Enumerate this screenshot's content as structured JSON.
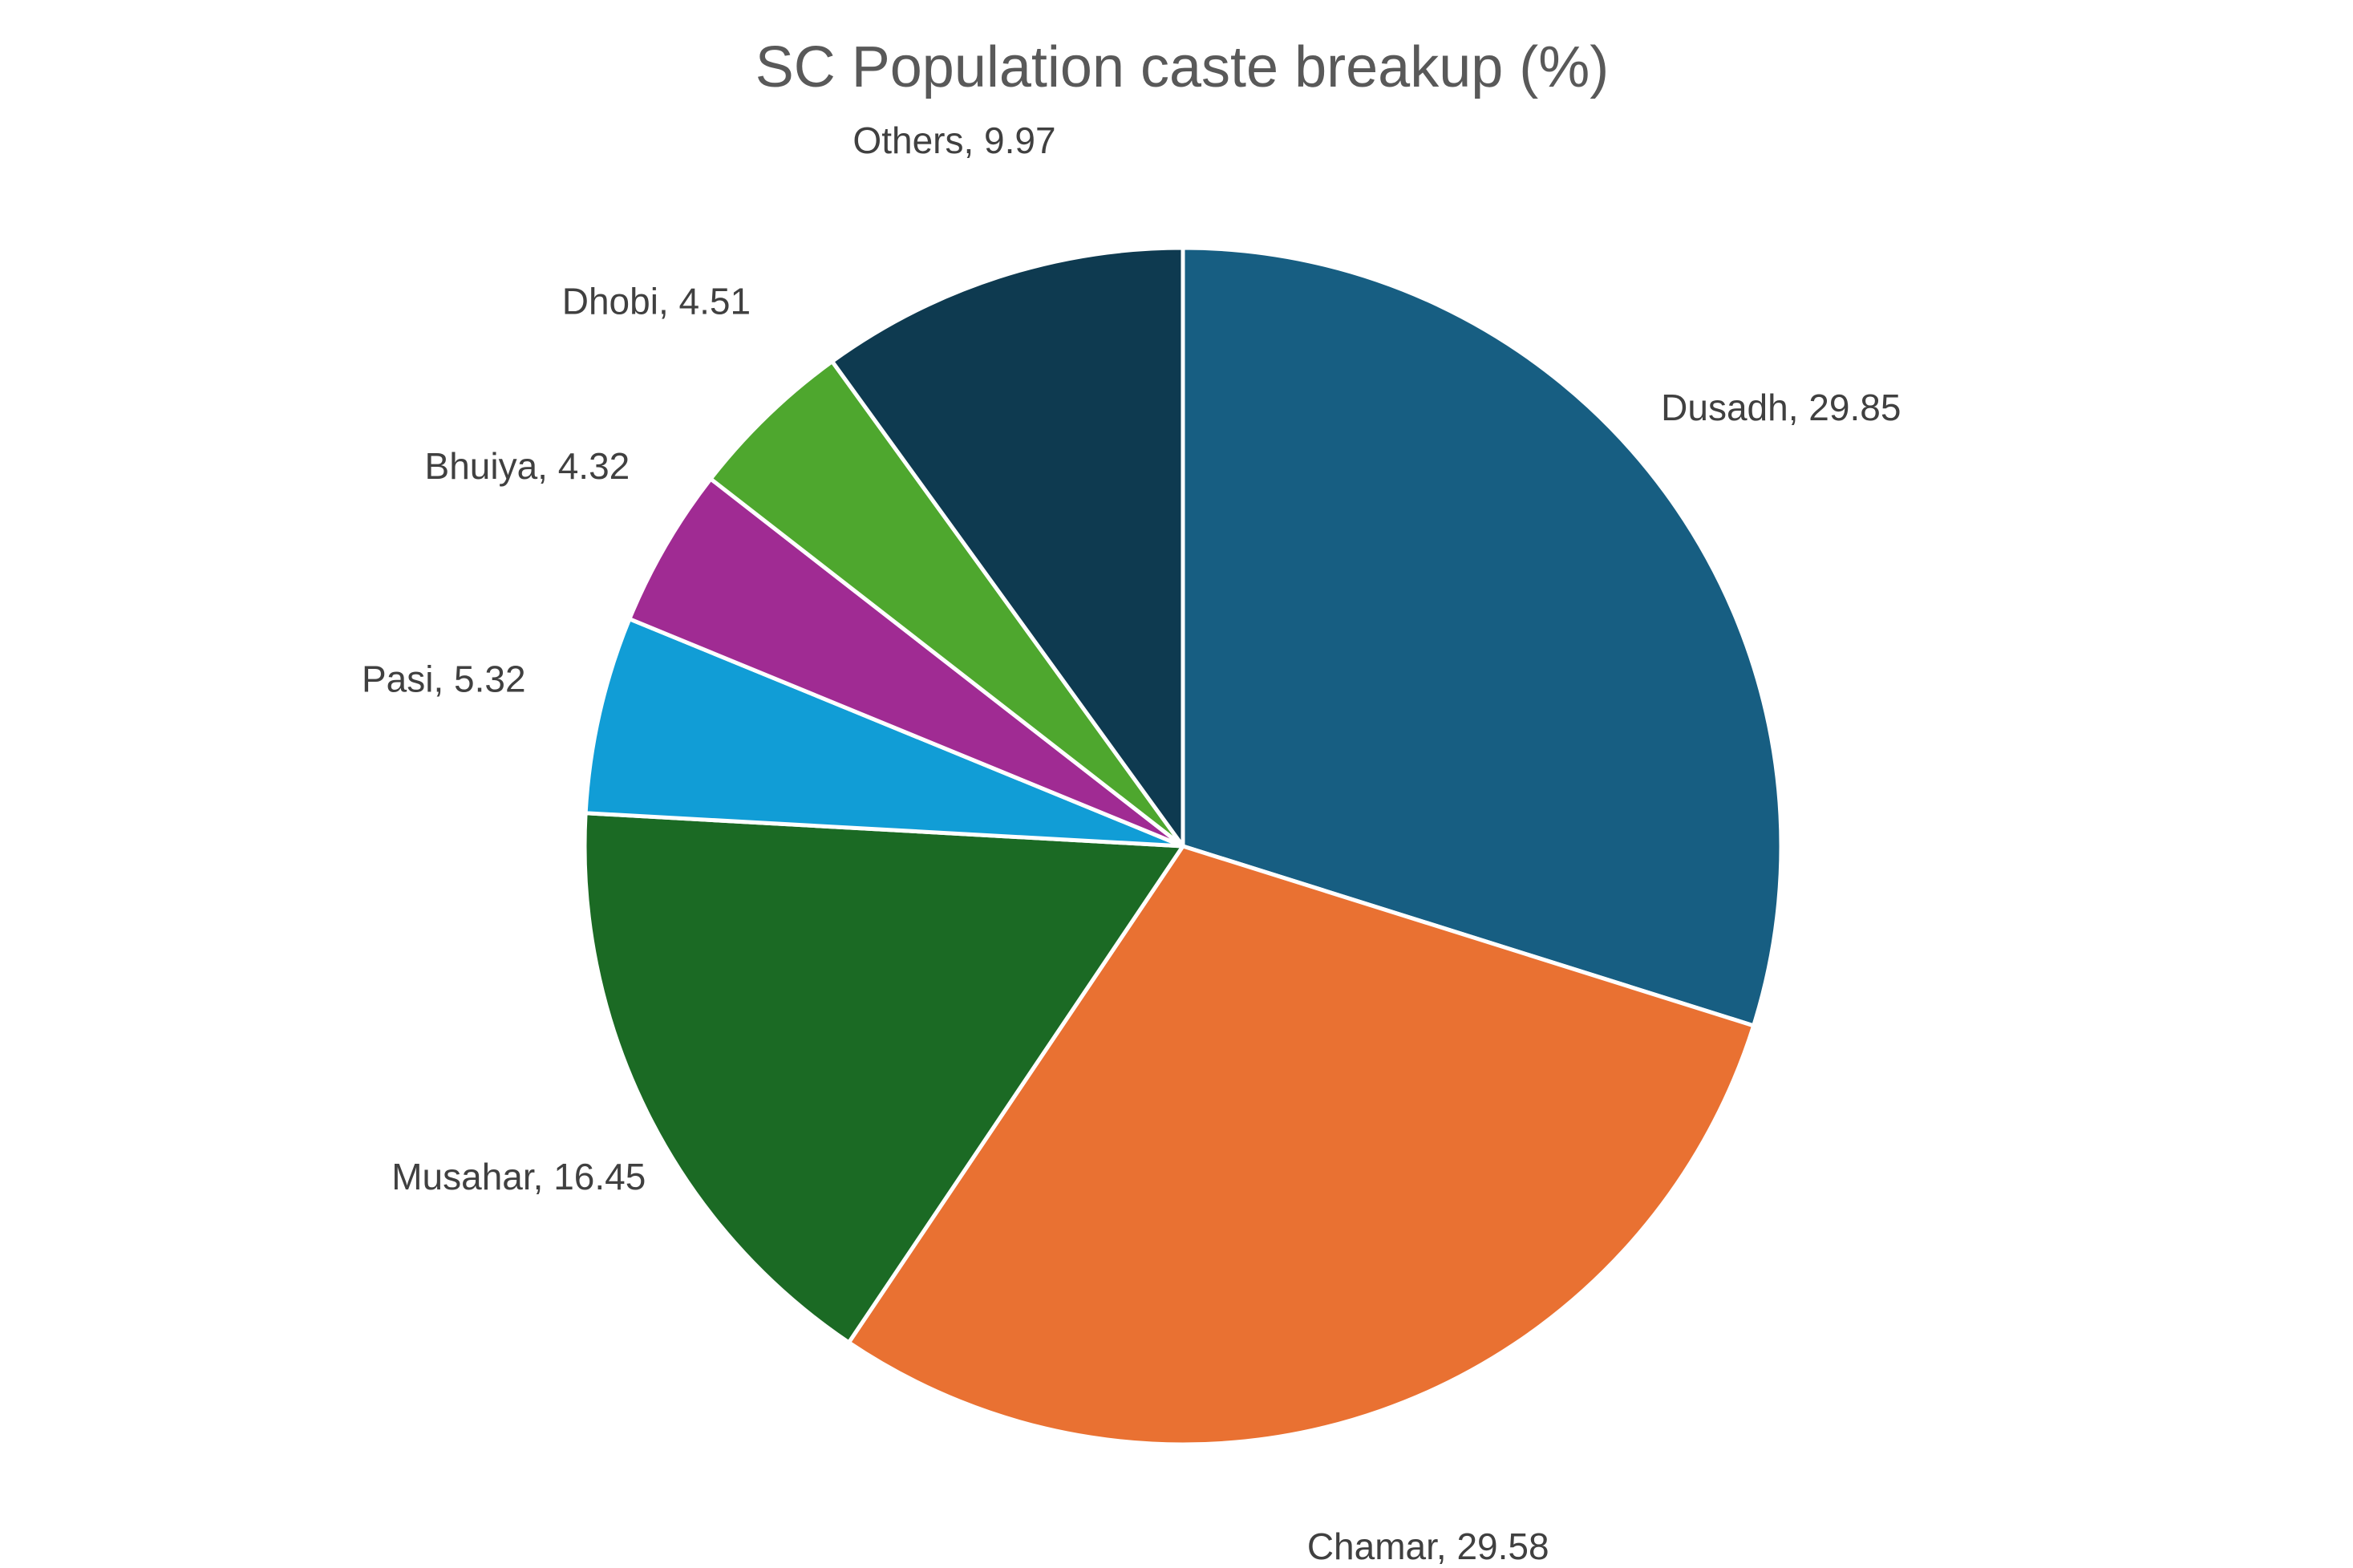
{
  "chart_data": {
    "type": "pie",
    "title": "SC Population caste breakup (%)",
    "start": "12 o'clock",
    "direction": "clockwise",
    "legend": "none",
    "slices": [
      {
        "label": "Dusadh",
        "value": 29.85,
        "color": "#175E82",
        "text": "Dusadh, 29.85"
      },
      {
        "label": "Chamar",
        "value": 29.58,
        "color": "#E97132",
        "text": "Chamar, 29.58"
      },
      {
        "label": "Musahar",
        "value": 16.45,
        "color": "#1B6A24",
        "text": "Musahar, 16.45"
      },
      {
        "label": "Pasi",
        "value": 5.32,
        "color": "#119DD6",
        "text": "Pasi, 5.32"
      },
      {
        "label": "Bhuiya",
        "value": 4.32,
        "color": "#A02B93",
        "text": "Bhuiya, 4.32"
      },
      {
        "label": "Dhobi",
        "value": 4.51,
        "color": "#4EA72E",
        "text": "Dhobi, 4.51"
      },
      {
        "label": "Others",
        "value": 9.97,
        "color": "#0E3A50",
        "text": "Others, 9.97"
      }
    ]
  }
}
